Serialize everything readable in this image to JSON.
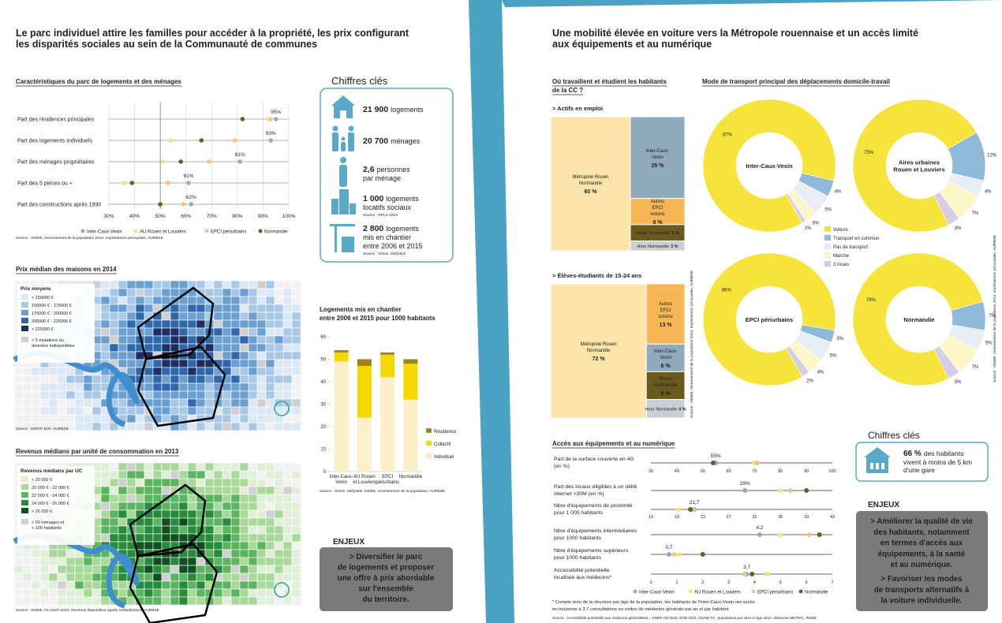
{
  "left": {
    "title": [
      "Le parc individuel attire les familles pour accéder à la propriété, les prix configurant",
      "les disparités sociales au sein de la Communauté de communes"
    ],
    "housing_chart": {
      "type": "dotplot",
      "title": "Caractéristiques du parc de logements et des ménages",
      "categories": [
        "Part des résidences principales",
        "Part des logements individuels",
        "Part des ménages propriétaires",
        "Part des 5 pièces ou +",
        "Part des constructions après 1990"
      ],
      "series": [
        {
          "name": "Inter-Caux-Vexin",
          "color": "#8eaed0",
          "values": [
            95,
            93,
            81,
            61,
            62
          ],
          "value_labels": [
            "95%",
            "93%",
            "81%",
            "61%",
            "62%"
          ]
        },
        {
          "name": "AU Rouen et Louviers",
          "color": "#f7e37a",
          "values": [
            92,
            54,
            51,
            36,
            50
          ]
        },
        {
          "name": "EPCI périurbains",
          "color": "#f6c486",
          "values": [
            93,
            79,
            69,
            53,
            59
          ]
        },
        {
          "name": "Normandie",
          "color": "#6e5b26",
          "values": [
            82,
            66,
            58,
            39,
            50
          ]
        }
      ],
      "xlim": [
        30,
        100
      ],
      "xticks": [
        {
          "value": 30,
          "label": "30%"
        },
        {
          "value": 40,
          "label": "40%"
        },
        {
          "value": 50,
          "label": "50%"
        },
        {
          "value": 60,
          "label": "60%"
        },
        {
          "value": 70,
          "label": "70%"
        },
        {
          "value": 80,
          "label": "80%"
        },
        {
          "value": 90,
          "label": "90%"
        },
        {
          "value": 100,
          "label": "100%"
        }
      ],
      "source": "Source : INSEE, recensement de la population 2014, exploitations principales, AURBSE"
    },
    "price_map": {
      "title": "Prix médian des maisons en 2014",
      "legend_title": "Prix moyens",
      "legend": [
        [
          "< 150000 €"
        ],
        [
          "150000 € - 175000 €"
        ],
        [
          "175000 € - 200000 €"
        ],
        [
          "200000 € - 225000 €"
        ],
        [
          "> 225000 €"
        ],
        [
          "< 5 mutations ou",
          "données indisponibles"
        ]
      ],
      "colors": [
        "#dce8f4",
        "#a9c8e6",
        "#6a9fd0",
        "#2c68aa",
        "#1b2f66",
        "#d0d0d0"
      ],
      "source": "Source : DGFiP, DVF, AURBSE"
    },
    "income_map": {
      "title": "Revenus médians par unité de consommation en 2013",
      "legend_title": "Revenus médians par UC",
      "legend": [
        [
          "< 20 000 €"
        ],
        [
          "20 000 € - 22 000 €"
        ],
        [
          "22 000 € - 24 000 €"
        ],
        [
          "24 000 € - 26 000 €"
        ],
        [
          "> 26 000 €"
        ],
        [
          "< 50 ménages et",
          "< 100 habitants"
        ]
      ],
      "colors": [
        "#e0f0d8",
        "#a8d89a",
        "#5cb360",
        "#268c3c",
        "#0f4f20",
        "#d0d0d0"
      ],
      "source": "Source : INSEE, FiLoSoFi 2013, Revenus disponibles (après redistribution), AURBSE"
    },
    "key_figures": {
      "title": "Chiffres clés",
      "items": [
        {
          "number": "21 900",
          "text": [
            "logements"
          ]
        },
        {
          "number": "20 700",
          "text": [
            "ménages"
          ]
        },
        {
          "number": "2,6",
          "text": [
            "personnes",
            "par ménage"
          ]
        },
        {
          "number": "1 000",
          "text": [
            "logements",
            "locatifs sociaux"
          ],
          "source": "Source : RPLS 2015"
        },
        {
          "number": "2 800",
          "text": [
            "logements",
            "mis en chantier",
            "entre 2006 et 2015"
          ],
          "source": "Source : SOeS, Sit@del2"
        }
      ]
    },
    "construction_chart": {
      "type": "bar",
      "stacked": true,
      "title": [
        "Logements mis en chantier",
        "entre 2006 et 2015 pour 1000 habitants"
      ],
      "categories": [
        [
          "Inter-Caux-",
          "Vexin"
        ],
        [
          "AU Rouen",
          "et Louviers"
        ],
        [
          "EPCI",
          "périurbains"
        ],
        [
          "Normandie"
        ]
      ],
      "series": [
        {
          "name": "Individuel",
          "color": "#fdf0c8",
          "values": [
            49,
            24,
            42,
            32
          ]
        },
        {
          "name": "Collectif",
          "color": "#f5d800",
          "values": [
            4,
            23,
            10,
            16
          ]
        },
        {
          "name": "Résidence",
          "color": "#9a8420",
          "values": [
            1,
            3,
            1,
            2
          ]
        }
      ],
      "ylim": [
        0,
        60
      ],
      "yticks": [
        0,
        10,
        20,
        30,
        40,
        50,
        60
      ],
      "source": "Source : SOeS, Sit@del2, INSEE, recensement de la population, AURBSE"
    },
    "issues": {
      "title": "ENJEUX",
      "lines": [
        "> Diversifier le parc",
        "de logements et proposer",
        "une offre à prix abordable",
        "sur l'ensemble",
        "du territoire."
      ]
    }
  },
  "right": {
    "title": [
      "Une mobilité élevée en voiture vers la Métropole rouennaise et un accès limité",
      "aux équipements et au numérique"
    ],
    "workplace": {
      "type": "treemap",
      "title": [
        "Où travaillent et étudient les habitants",
        "de la CC ?"
      ],
      "groups": [
        {
          "title": "> Actifs en emploi",
          "items": [
            {
              "name": [
                "Métropole Rouen",
                "Normandie"
              ],
              "value": 60,
              "value_label": "60 %",
              "color": "#fde4a8"
            },
            {
              "name": [
                "Inter-Caux-",
                "Vexin"
              ],
              "value": 25,
              "value_label": "25 %",
              "color": "#8fa9bd"
            },
            {
              "name": [
                "Autres",
                "EPCI",
                "voisins"
              ],
              "value": 8,
              "value_label": "8 %",
              "color": "#f7b655"
            },
            {
              "name": [
                "Reste",
                "Normandie"
              ],
              "value": 5,
              "value_label": "5 %",
              "color": "#6b5a1e"
            },
            {
              "name": [
                "Hors",
                "Normandie"
              ],
              "value": 3,
              "value_label": "3 %",
              "color": "#c9cfd4"
            }
          ]
        },
        {
          "title": "> Élèves-étudiants de 15-24 ans",
          "items": [
            {
              "name": [
                "Métropole Rouen",
                "Normandie"
              ],
              "value": 72,
              "value_label": "72 %",
              "color": "#fde4a8"
            },
            {
              "name": [
                "Autres",
                "EPCI",
                "voisins"
              ],
              "value": 13,
              "value_label": "13 %",
              "color": "#f7b655"
            },
            {
              "name": [
                "Inter-Caux-",
                "Vexin"
              ],
              "value": 6,
              "value_label": "6 %",
              "color": "#8fa9bd"
            },
            {
              "name": [
                "Reste",
                "Normandie"
              ],
              "value": 6,
              "value_label": "6 %",
              "color": "#6b5a1e"
            },
            {
              "name": [
                "Hors",
                "Normandie"
              ],
              "value": 4,
              "value_label": "4 %",
              "color": "#c9cfd4"
            }
          ]
        }
      ],
      "source": "Source : INSEE, recensement de la population 2014, exploitations principales, AURBSE"
    },
    "transport_chart": {
      "type": "donut",
      "title": "Mode de transport principal des déplacements domicile-travail",
      "categories": [
        "Voiture",
        "Transport en commun",
        "Pas de transport",
        "Marche",
        "2 roues"
      ],
      "colors": [
        "#f7e43a",
        "#8fb9d8",
        "#e8eef5",
        "#fdf6c8",
        "#d6cde6"
      ],
      "donuts": [
        {
          "name": [
            "Inter-Caux-Vexin"
          ],
          "values": [
            87,
            4,
            5,
            3,
            1
          ],
          "value_labels": [
            "87%",
            "4%",
            "5%",
            "3%",
            "1%"
          ]
        },
        {
          "name": [
            "Aires urbaines",
            "Rouen et Louviers"
          ],
          "values": [
            75,
            12,
            4,
            7,
            3
          ],
          "value_labels": [
            "75%",
            "12%",
            "4%",
            "7%",
            "3%"
          ]
        },
        {
          "name": [
            "EPCI périurbains"
          ],
          "values": [
            86,
            3,
            5,
            4,
            2
          ],
          "value_labels": [
            "86%",
            "3%",
            "5%",
            "4%",
            "2%"
          ]
        },
        {
          "name": [
            "Normandie"
          ],
          "values": [
            79,
            7,
            5,
            7,
            3
          ],
          "value_labels": [
            "79%",
            "7%",
            "5%",
            "7%",
            "3%"
          ]
        }
      ],
      "source": "Source : INSEE, recensement de la population 2014, exploitations principales, AURBSE"
    },
    "equipment_chart": {
      "type": "dotplot",
      "title": "Accès aux équipements et au numérique",
      "series": [
        {
          "name": "Inter-Caux-Vexin",
          "color": "#8eaed0"
        },
        {
          "name": "AU Rouen et Louviers",
          "color": "#f7e37a"
        },
        {
          "name": "EPCI périurbains",
          "color": "#f6c486"
        },
        {
          "name": "Normandie",
          "color": "#6e5b26"
        }
      ],
      "rows": [
        {
          "label": [
            "Part de la surface couverte en 4G",
            "(en %)"
          ],
          "xlim": [
            30,
            100
          ],
          "values": [
            55,
            70,
            71,
            54
          ],
          "value_label": "55%"
        },
        {
          "label": [
            "Part des locaux éligibles à un débit",
            "internet >30M (en %)"
          ],
          "xlim": [
            0,
            56
          ],
          "values": [
            29,
            40,
            43,
            48
          ],
          "value_label": "29%"
        },
        {
          "label": [
            "Nbre d'équipements de proximité",
            "pour 1 000 habitants"
          ],
          "xlim": [
            15,
            43
          ],
          "values": [
            21.7,
            19.3,
            21.5,
            21.1
          ],
          "value_label": "21,7"
        },
        {
          "label": [
            "Nbre d'équipements intermédiaires",
            "pour 1000 habitants"
          ],
          "xlim": [
            0,
            7
          ],
          "values": [
            4.2,
            5.0,
            6.1,
            6.5
          ],
          "value_label": "4,2"
        },
        {
          "label": [
            "Nbre d'équipements supérieurs",
            "pour 1000 habitants"
          ],
          "xlim": [
            0,
            7
          ],
          "values": [
            0.7,
            1.1,
            0.9,
            2.0
          ],
          "value_label": "0,7"
        },
        {
          "label": [
            "Accessibilité potentielle",
            "localisée aux médecins*"
          ],
          "xlim": [
            0,
            7
          ],
          "values": [
            3.7,
            4.5,
            3.6,
            3.9
          ],
          "value_label": "3,7"
        }
      ],
      "axes": [
        {
          "xlim": [
            30,
            100
          ],
          "xticks": [
            30,
            40,
            50,
            60,
            70,
            80,
            90,
            100
          ]
        },
        {
          "xlim": [
            15,
            43
          ],
          "xticks": [
            15,
            19,
            23,
            27,
            31,
            35,
            39,
            43
          ]
        },
        {
          "xlim": [
            0,
            7
          ],
          "xticks": [
            0,
            1,
            2,
            3,
            4,
            5,
            6,
            7
          ]
        }
      ],
      "note": [
        "* Compte tenu de la structure par âge de la population, les habitants de l'Inter-Caux-Vexin ont accès",
        "en moyenne à 3,7 consultations ou visites de médecine générale par an et par habitant."
      ],
      "source": "Source : Accessibilité potentielle aux médecins généralistes = SNIIR-AM 2015, EGB 2013, CNAM-TS ; populations par sexe et âge 2013, distancier METRIC, INSEE"
    },
    "key_figures": {
      "title": "Chiffres clés",
      "number": "66 %",
      "text": [
        "des habitants",
        "vivent à moins de 5 km",
        "d'une gare"
      ]
    },
    "issues": {
      "title": "ENJEUX",
      "lines": [
        "> Améliorer la qualité de vie",
        "des habitants, notamment",
        "en termes d'accès aux",
        "équipements, à la santé",
        "et au numérique.",
        "> Favoriser les modes",
        "de transports alternatifs à",
        "la voiture individuelle."
      ]
    }
  }
}
